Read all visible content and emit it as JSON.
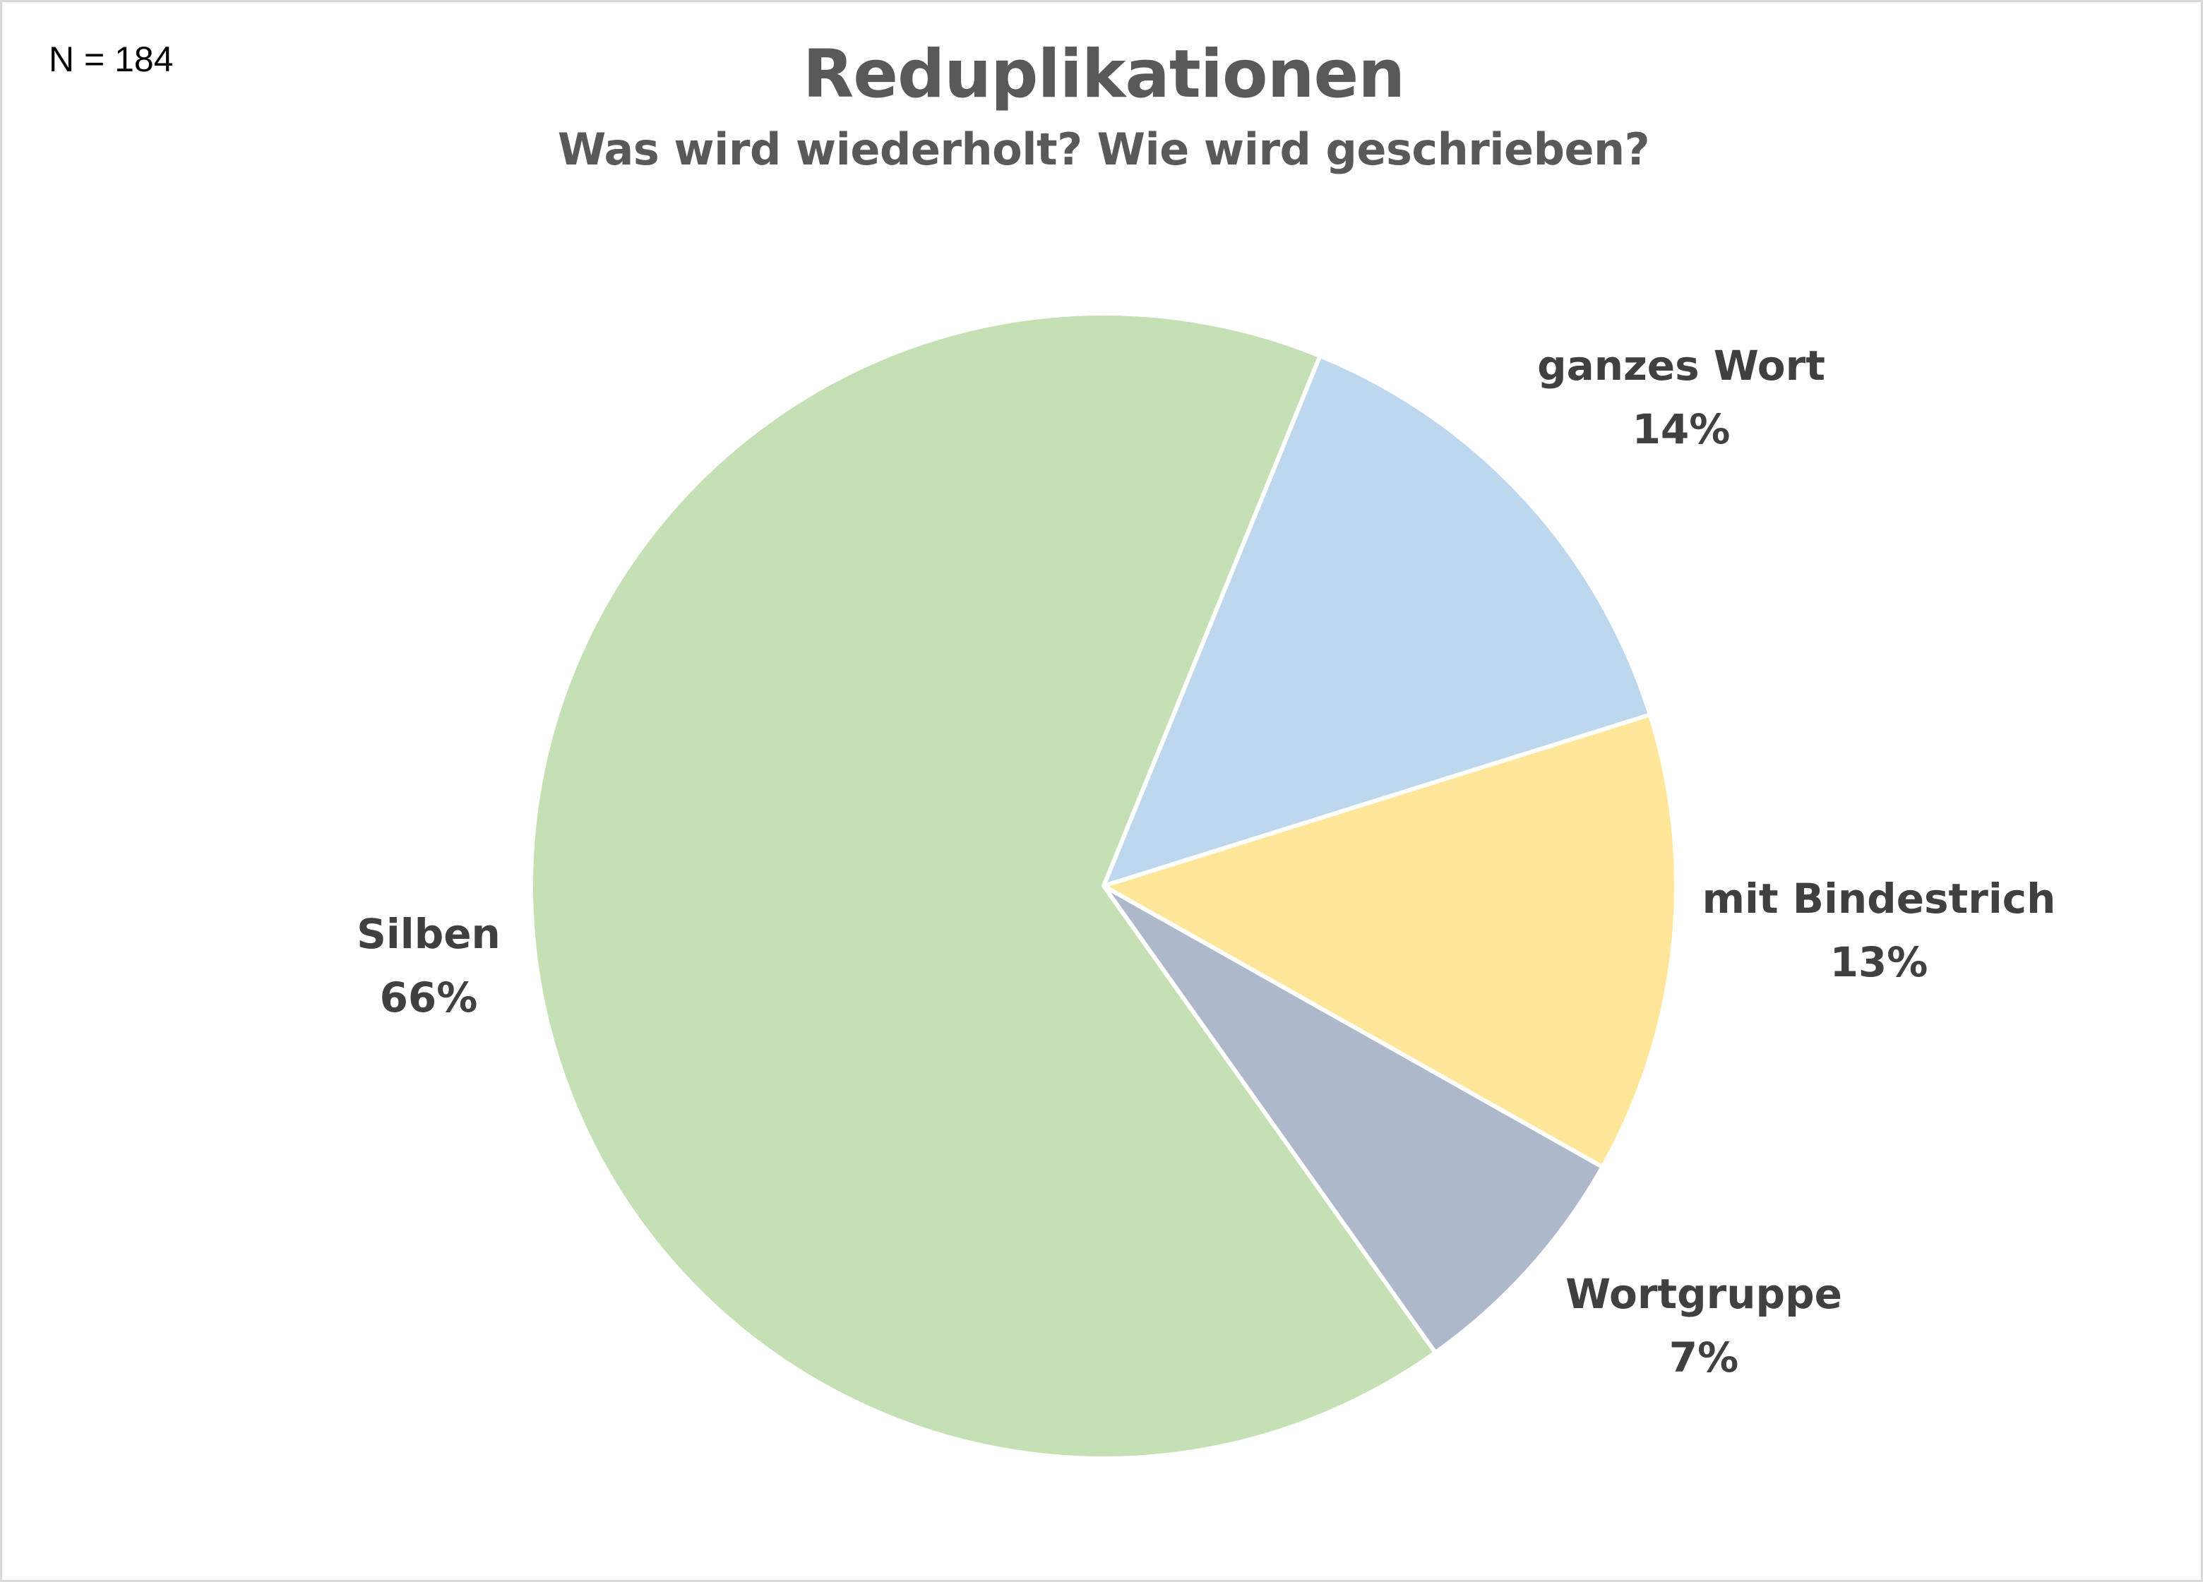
{
  "n_label": "N = 184",
  "chart_data": {
    "type": "pie",
    "title": "Reduplikationen",
    "subtitle": "Was wird wiederholt? Wie wird geschrieben?",
    "slices": [
      {
        "name": "ganzes Wort",
        "value": 14,
        "label": "14%",
        "color": "#bdd7ee"
      },
      {
        "name": "mit Bindestrich",
        "value": 13,
        "label": "13%",
        "color": "#ffe699"
      },
      {
        "name": "Wortgruppe",
        "value": 7,
        "label": "7%",
        "color": "#adb9ca"
      },
      {
        "name": "Silben",
        "value": 66,
        "label": "66%",
        "color": "#c5e0b4"
      }
    ],
    "slice_border_color": "#ffffff",
    "legend": "none",
    "data_labels": "outside"
  }
}
